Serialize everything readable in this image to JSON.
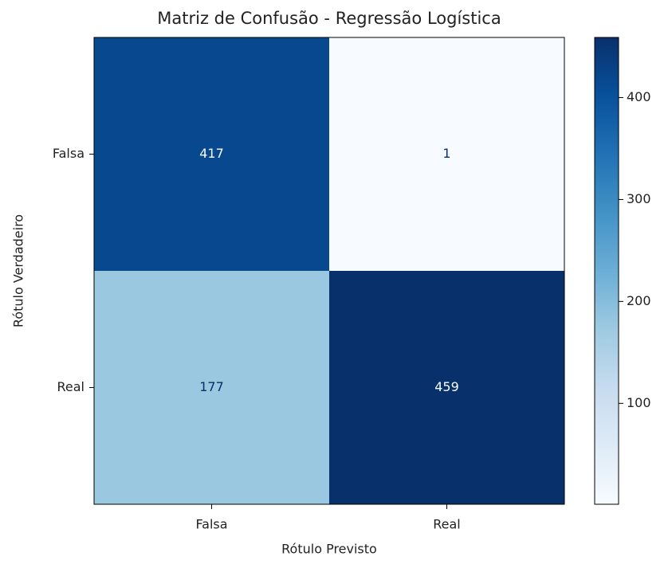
{
  "chart_data": {
    "type": "heatmap",
    "title": "Matriz de Confusão - Regressão Logística",
    "x_label": "Rótulo Previsto",
    "y_label": "Rótulo Verdadeiro",
    "x_categories": [
      "Falsa",
      "Real"
    ],
    "y_categories": [
      "Falsa",
      "Real"
    ],
    "values": [
      [
        417,
        1
      ],
      [
        177,
        459
      ]
    ],
    "colorscale": [
      "#f7fbff",
      "#deebf7",
      "#c6dbef",
      "#9ecae1",
      "#6baed6",
      "#4292c6",
      "#2171b5",
      "#08519c",
      "#08306b"
    ],
    "colorbar_lim": [
      1,
      459
    ],
    "colorbar_ticks": [
      100,
      200,
      300,
      400
    ]
  }
}
